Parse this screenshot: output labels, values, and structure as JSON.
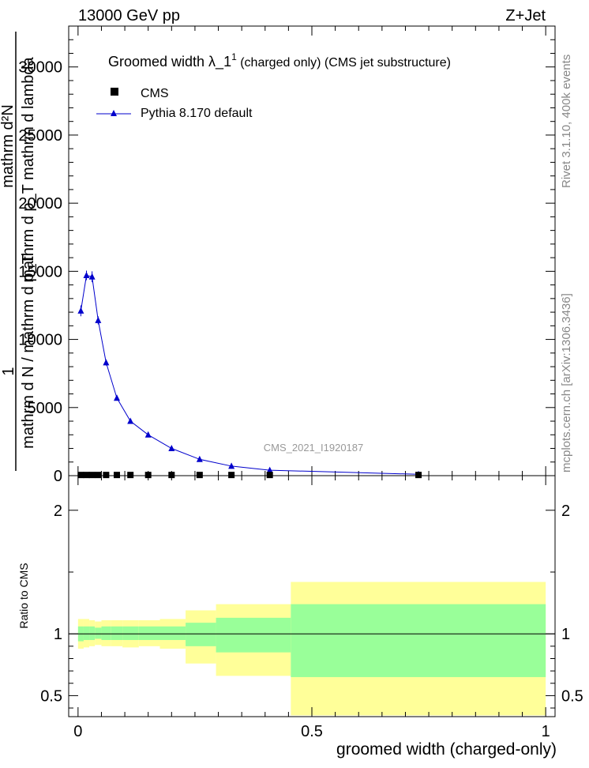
{
  "header": {
    "left": "13000 GeV pp",
    "right": "Z+Jet"
  },
  "side_labels": {
    "rivet": "Rivet 3.1.10,  400k events",
    "mcplots": "mcplots.cern.ch [arXiv:1306.3436]"
  },
  "colors": {
    "mc_line": "#0000cc",
    "data_marker": "#000000",
    "band_inner": "#99ff99",
    "band_outer": "#ffff99",
    "watermark": "#999999"
  },
  "chart_data": [
    {
      "type": "line",
      "title_main": "Groomed width  λ_1",
      "title_sup": "1",
      "title_rest": " (charged only) (CMS jet substructure)",
      "ylabel_numer": "mathrm d²N",
      "ylabel_numer2": "mathrm d p_T mathrm d lambda",
      "ylabel_frac_num": "1",
      "ylabel_denom": "mathrm d N / mathrm d p_T",
      "watermark": "CMS_2021_I1920187",
      "xlim": [
        -0.02,
        1.02
      ],
      "ylim": [
        0,
        33000
      ],
      "yticks": [
        0,
        5000,
        10000,
        15000,
        20000,
        25000,
        30000
      ],
      "ytick_labels": [
        "0",
        "5000",
        "10000",
        "15000",
        "20000",
        "25000",
        "30000"
      ],
      "legend": [
        {
          "label": "CMS",
          "marker": "square"
        },
        {
          "label": "Pythia 8.170 default",
          "marker": "triangle"
        }
      ],
      "series": [
        {
          "name": "Pythia 8.170 default",
          "x": [
            0.006,
            0.018,
            0.03,
            0.043,
            0.06,
            0.083,
            0.112,
            0.15,
            0.2,
            0.26,
            0.328,
            0.41,
            0.728
          ],
          "y": [
            12100,
            14700,
            14600,
            11400,
            8300,
            5700,
            4000,
            3000,
            2000,
            1200,
            700,
            400,
            100
          ],
          "err": [
            400,
            350,
            400,
            300,
            220,
            150,
            100,
            80,
            60,
            40,
            30,
            20,
            10
          ]
        },
        {
          "name": "CMS",
          "x": [
            0.006,
            0.018,
            0.03,
            0.043,
            0.06,
            0.083,
            0.112,
            0.15,
            0.2,
            0.26,
            0.328,
            0.41,
            0.728
          ],
          "y": [
            50,
            50,
            50,
            50,
            50,
            50,
            50,
            50,
            50,
            50,
            50,
            50,
            50
          ]
        }
      ]
    },
    {
      "type": "area",
      "ylabel": "Ratio to CMS",
      "xlabel": "groomed width (charged-only)",
      "xlim": [
        -0.02,
        1.02
      ],
      "ylim": [
        0.33,
        2.28
      ],
      "yticks": [
        0.5,
        1,
        2
      ],
      "ytick_labels": [
        "0.5",
        "1",
        "2"
      ],
      "xticks": [
        0,
        0.5,
        1
      ],
      "xtick_labels": [
        "0",
        "0.5",
        "1"
      ],
      "reference": 1.0,
      "bins": [
        {
          "x0": 0.0,
          "x1": 0.012,
          "in_lo": 0.94,
          "in_hi": 1.06,
          "out_lo": 0.88,
          "out_hi": 1.12
        },
        {
          "x0": 0.012,
          "x1": 0.024,
          "in_lo": 0.95,
          "in_hi": 1.06,
          "out_lo": 0.89,
          "out_hi": 1.12
        },
        {
          "x0": 0.024,
          "x1": 0.036,
          "in_lo": 0.95,
          "in_hi": 1.06,
          "out_lo": 0.9,
          "out_hi": 1.11
        },
        {
          "x0": 0.036,
          "x1": 0.05,
          "in_lo": 0.96,
          "in_hi": 1.05,
          "out_lo": 0.91,
          "out_hi": 1.1
        },
        {
          "x0": 0.05,
          "x1": 0.07,
          "in_lo": 0.95,
          "in_hi": 1.06,
          "out_lo": 0.9,
          "out_hi": 1.11
        },
        {
          "x0": 0.07,
          "x1": 0.095,
          "in_lo": 0.95,
          "in_hi": 1.06,
          "out_lo": 0.9,
          "out_hi": 1.11
        },
        {
          "x0": 0.095,
          "x1": 0.13,
          "in_lo": 0.95,
          "in_hi": 1.06,
          "out_lo": 0.89,
          "out_hi": 1.11
        },
        {
          "x0": 0.13,
          "x1": 0.175,
          "in_lo": 0.95,
          "in_hi": 1.06,
          "out_lo": 0.9,
          "out_hi": 1.11
        },
        {
          "x0": 0.175,
          "x1": 0.23,
          "in_lo": 0.95,
          "in_hi": 1.06,
          "out_lo": 0.88,
          "out_hi": 1.12
        },
        {
          "x0": 0.23,
          "x1": 0.295,
          "in_lo": 0.9,
          "in_hi": 1.09,
          "out_lo": 0.76,
          "out_hi": 1.19
        },
        {
          "x0": 0.295,
          "x1": 0.455,
          "in_lo": 0.85,
          "in_hi": 1.13,
          "out_lo": 0.66,
          "out_hi": 1.24
        },
        {
          "x0": 0.455,
          "x1": 1.0,
          "in_lo": 0.65,
          "in_hi": 1.24,
          "out_lo": 0.34,
          "out_hi": 1.42
        }
      ]
    }
  ]
}
